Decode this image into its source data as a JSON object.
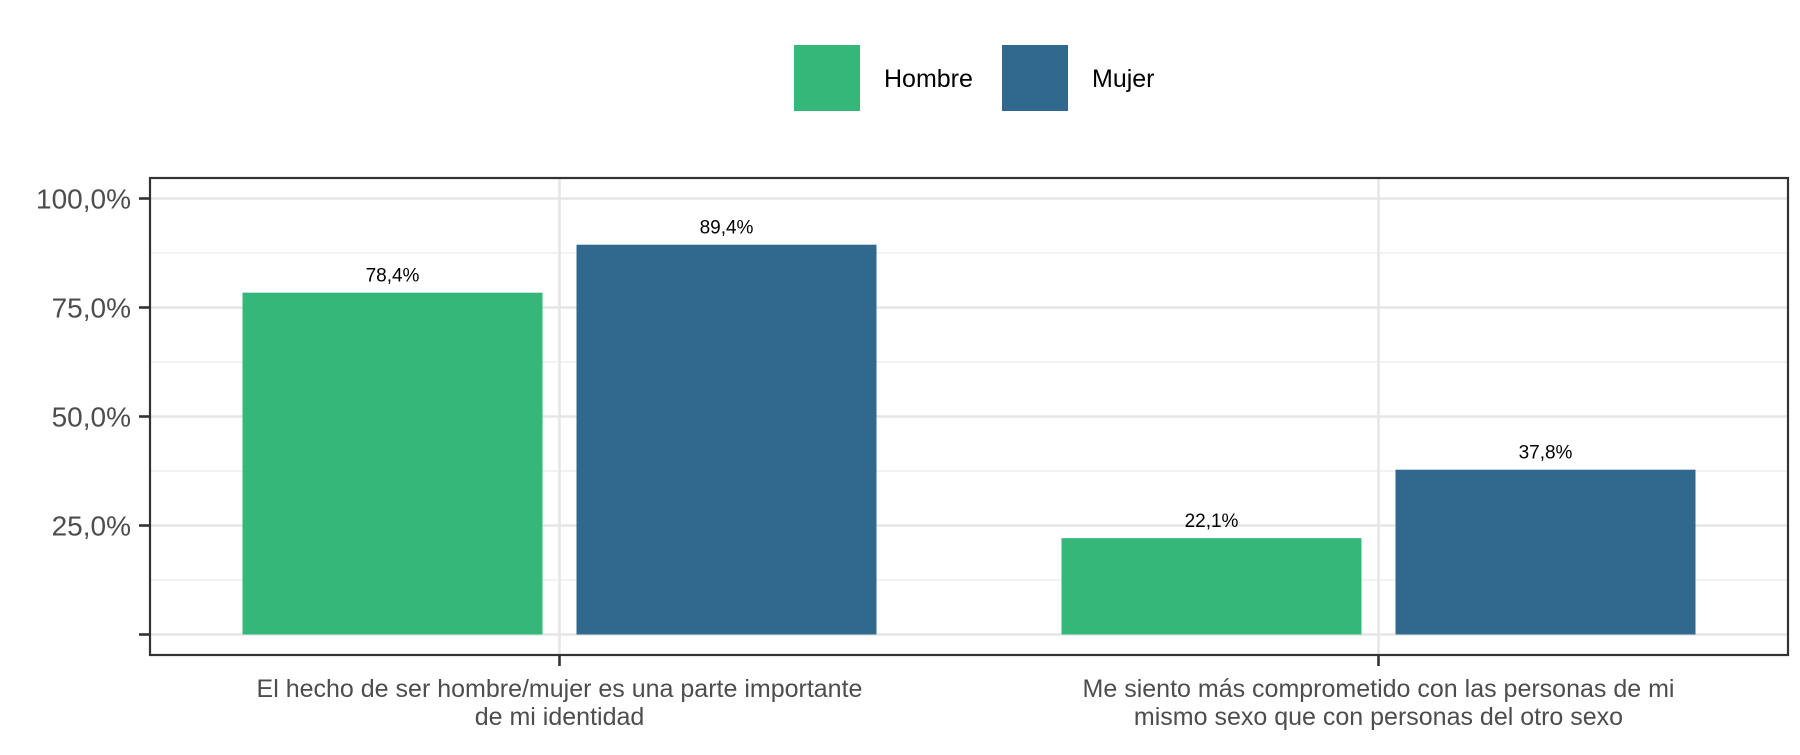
{
  "chart_data": {
    "type": "bar",
    "categories": [
      [
        "El hecho de ser hombre/mujer es una parte importante",
        "de mi identidad"
      ],
      [
        "Me siento más comprometido con las personas de mi",
        "mismo sexo que con personas del otro sexo"
      ]
    ],
    "series": [
      {
        "name": "Hombre",
        "color": "#35b779",
        "values": [
          78.4,
          22.1
        ],
        "labels": [
          "78,4%",
          "22,1%"
        ]
      },
      {
        "name": "Mujer",
        "color": "#31688e",
        "values": [
          89.4,
          37.8
        ],
        "labels": [
          "89,4%",
          "37,8%"
        ]
      }
    ],
    "ylim": [
      -4.7,
      104.7
    ],
    "yticks": [
      {
        "value": 0,
        "label": ""
      },
      {
        "value": 25,
        "label": "25,0%"
      },
      {
        "value": 50,
        "label": "50,0%"
      },
      {
        "value": 75,
        "label": "75,0%"
      },
      {
        "value": 100,
        "label": "100,0%"
      }
    ],
    "yminor": [
      12.5,
      37.5,
      62.5,
      87.5
    ],
    "xlabel": "",
    "ylabel": "",
    "legend_position": "top",
    "grid": true
  }
}
